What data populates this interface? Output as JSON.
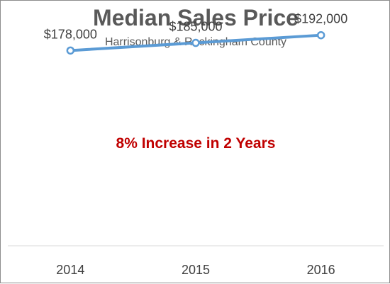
{
  "chart_data": {
    "type": "line",
    "title": "Median Sales Price",
    "subtitle": "Harrisonburg & Rockingham County",
    "categories": [
      "2014",
      "2015",
      "2016"
    ],
    "series": [
      {
        "values": [
          178000,
          185000,
          192000
        ],
        "labels": [
          "$178,000",
          "$185,000",
          "$192,000"
        ]
      }
    ],
    "annotation": "8% Increase in 2 Years",
    "ylim": [
      0,
      200000
    ],
    "grid": false,
    "legend": "none"
  },
  "colors": {
    "line": "#5b9bd5",
    "title": "#595959",
    "annotation": "#c00000",
    "axis": "#d9d9d9"
  }
}
